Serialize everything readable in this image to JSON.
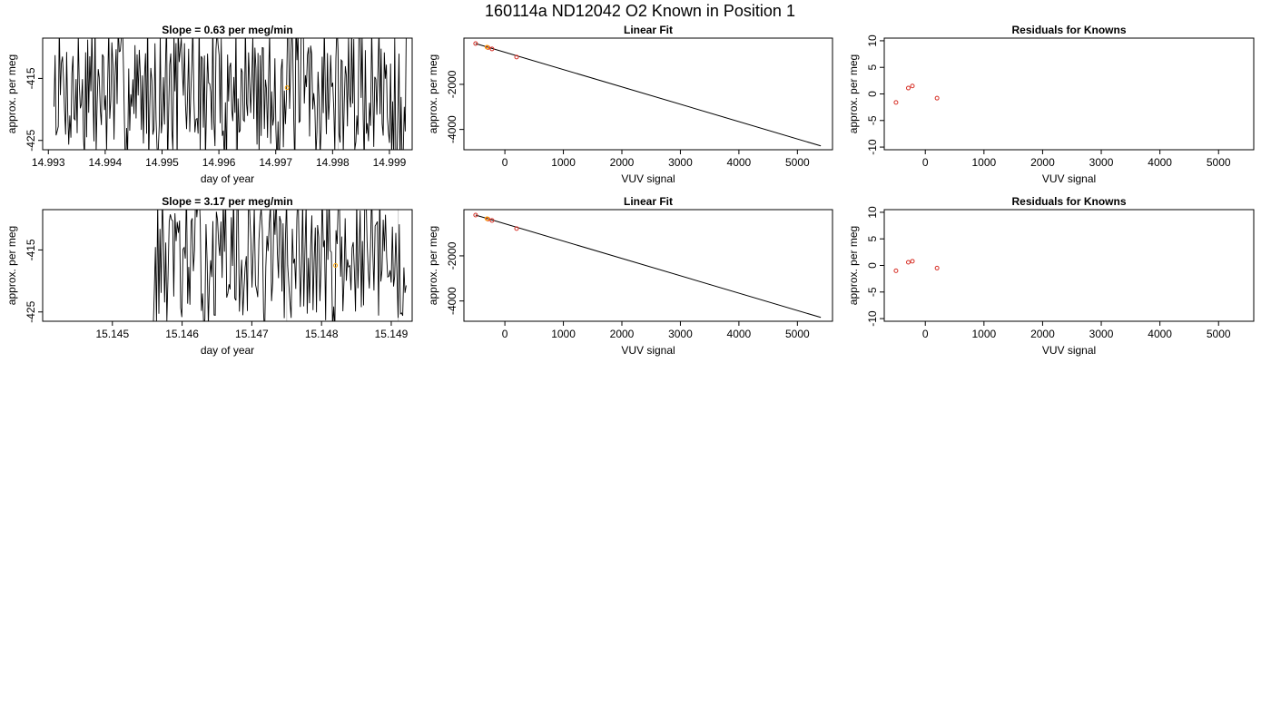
{
  "figure_title": "160114a     ND12042   O2 Known in Position  1",
  "colors": {
    "series": "#000000",
    "points": "#d73027",
    "highlight": "#ffa500",
    "guide": "#cccccc"
  },
  "chart_data": [
    {
      "id": "ts1",
      "type": "line",
      "title": "Slope =  0.63  per meg/min",
      "xlabel": "day of year",
      "ylabel": "approx. per meg",
      "xlim": [
        14.9929,
        14.9994
      ],
      "ylim": [
        -426.5,
        -408.5
      ],
      "xticks": [
        "14.993",
        "14.994",
        "14.995",
        "14.996",
        "14.997",
        "14.998",
        "14.999"
      ],
      "yticks": [
        "-415",
        "-425"
      ],
      "series": [
        {
          "x0": 14.9931,
          "dx": 1.85e-05,
          "seed": 7,
          "mean": -417,
          "amp": 11,
          "lead": 0
        }
      ],
      "guides_x": [
        14.9963,
        14.9981
      ],
      "highlight": [
        {
          "x": 14.9972,
          "y": -416.5
        }
      ]
    },
    {
      "id": "fit1",
      "type": "scatter",
      "title": "Linear Fit",
      "xlabel": "VUV signal",
      "ylabel": "approx. per meg",
      "xlim": [
        -700,
        5600
      ],
      "ylim": [
        -4900,
        50
      ],
      "xticks": [
        "0",
        "1000",
        "2000",
        "3000",
        "4000",
        "5000"
      ],
      "yticks": [
        "-2000",
        "-4000"
      ],
      "points": [
        {
          "x": -500,
          "y": -190
        },
        {
          "x": -290,
          "y": -370
        },
        {
          "x": -220,
          "y": -430
        },
        {
          "x": 200,
          "y": -790
        }
      ],
      "fit_line": {
        "x": [
          -500,
          5400
        ],
        "y": [
          -190,
          -4730
        ]
      },
      "highlight": [
        {
          "x": -305,
          "y": -350
        }
      ]
    },
    {
      "id": "res1",
      "type": "scatter",
      "title": "Residuals for Knowns",
      "xlabel": "VUV signal",
      "ylabel": "approx. per meg",
      "xlim": [
        -700,
        5600
      ],
      "ylim": [
        -10.5,
        10.5
      ],
      "xticks": [
        "0",
        "1000",
        "2000",
        "3000",
        "4000",
        "5000"
      ],
      "yticks": [
        "-10",
        "-5",
        "0",
        "5",
        "10"
      ],
      "points": [
        {
          "x": -500,
          "y": -1.6
        },
        {
          "x": -290,
          "y": 1.1
        },
        {
          "x": -220,
          "y": 1.5
        },
        {
          "x": 200,
          "y": -0.8
        }
      ]
    },
    {
      "id": "ts2",
      "type": "line",
      "title": "Slope =  3.17  per meg/min",
      "xlabel": "day of year",
      "ylabel": "approx. per meg",
      "xlim": [
        15.144,
        15.1493
      ],
      "ylim": [
        -426.5,
        -408.5
      ],
      "xticks": [
        "15.145",
        "15.146",
        "15.147",
        "15.148",
        "15.149"
      ],
      "yticks": [
        "-415",
        "-425"
      ],
      "series": [
        {
          "x0": 15.144,
          "dx": 1.65e-05,
          "seed": 13,
          "mean": -416.5,
          "amp": 10,
          "lead": 0.3
        }
      ],
      "guides_x": [
        15.1475,
        15.1491
      ],
      "highlight": [
        {
          "x": 15.1482,
          "y": -417.5
        }
      ]
    },
    {
      "id": "fit2",
      "type": "scatter",
      "title": "Linear Fit",
      "xlabel": "VUV signal",
      "ylabel": "approx. per meg",
      "xlim": [
        -700,
        5600
      ],
      "ylim": [
        -4900,
        50
      ],
      "xticks": [
        "0",
        "1000",
        "2000",
        "3000",
        "4000",
        "5000"
      ],
      "yticks": [
        "-2000",
        "-4000"
      ],
      "points": [
        {
          "x": -500,
          "y": -190
        },
        {
          "x": -290,
          "y": -370
        },
        {
          "x": -220,
          "y": -430
        },
        {
          "x": 200,
          "y": -790
        }
      ],
      "fit_line": {
        "x": [
          -500,
          5400
        ],
        "y": [
          -190,
          -4730
        ]
      },
      "highlight": [
        {
          "x": -305,
          "y": -350
        }
      ]
    },
    {
      "id": "res2",
      "type": "scatter",
      "title": "Residuals for Knowns",
      "xlabel": "VUV signal",
      "ylabel": "approx. per meg",
      "xlim": [
        -700,
        5600
      ],
      "ylim": [
        -10.5,
        10.5
      ],
      "xticks": [
        "0",
        "1000",
        "2000",
        "3000",
        "4000",
        "5000"
      ],
      "yticks": [
        "-10",
        "-5",
        "0",
        "5",
        "10"
      ],
      "points": [
        {
          "x": -500,
          "y": -1.0
        },
        {
          "x": -290,
          "y": 0.6
        },
        {
          "x": -220,
          "y": 0.8
        },
        {
          "x": 200,
          "y": -0.5
        }
      ]
    }
  ]
}
